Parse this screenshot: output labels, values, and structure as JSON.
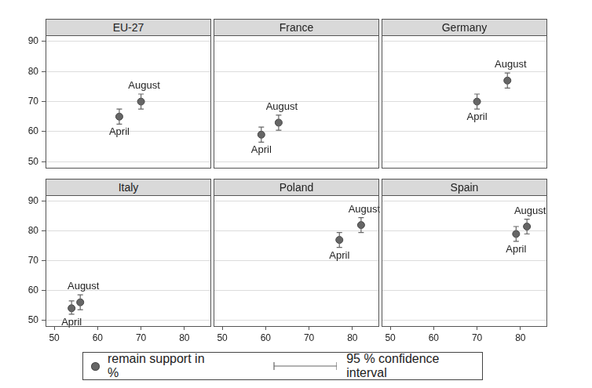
{
  "chart_data": [
    {
      "type": "scatter",
      "title": "EU-27",
      "xlim": [
        48,
        86
      ],
      "ylim": [
        48,
        92
      ],
      "xticks": [
        50,
        60,
        70,
        80
      ],
      "yticks": [
        50,
        60,
        70,
        80,
        90
      ],
      "grid": true,
      "tick_labels": "y",
      "legend": "bottom",
      "series": [
        {
          "name": "remain support in %",
          "color": "#666666",
          "marker": "circle",
          "x": [
            65,
            70
          ],
          "values": [
            65,
            70
          ],
          "point_labels": [
            "April",
            "August"
          ],
          "ci_name": "95 % confidence interval",
          "ci_low": [
            62.5,
            67.5
          ],
          "ci_high": [
            67.5,
            72.5
          ]
        }
      ]
    },
    {
      "type": "scatter",
      "title": "France",
      "xlim": [
        48,
        86
      ],
      "ylim": [
        48,
        92
      ],
      "xticks": [
        50,
        60,
        70,
        80
      ],
      "yticks": [
        50,
        60,
        70,
        80,
        90
      ],
      "grid": true,
      "tick_labels": false,
      "legend": "bottom",
      "series": [
        {
          "name": "remain support in %",
          "color": "#666666",
          "marker": "circle",
          "x": [
            59,
            63
          ],
          "values": [
            59,
            63
          ],
          "point_labels": [
            "April",
            "August"
          ],
          "ci_name": "95 % confidence interval",
          "ci_low": [
            56.5,
            60.5
          ],
          "ci_high": [
            61.5,
            65.5
          ]
        }
      ]
    },
    {
      "type": "scatter",
      "title": "Germany",
      "xlim": [
        48,
        86
      ],
      "ylim": [
        48,
        92
      ],
      "xticks": [
        50,
        60,
        70,
        80
      ],
      "yticks": [
        50,
        60,
        70,
        80,
        90
      ],
      "grid": true,
      "tick_labels": false,
      "legend": "bottom",
      "series": [
        {
          "name": "remain support in %",
          "color": "#666666",
          "marker": "circle",
          "x": [
            70,
            77
          ],
          "values": [
            70,
            77
          ],
          "point_labels": [
            "April",
            "August"
          ],
          "ci_name": "95 % confidence interval",
          "ci_low": [
            67.5,
            74.5
          ],
          "ci_high": [
            72.5,
            79.5
          ]
        }
      ]
    },
    {
      "type": "scatter",
      "title": "Italy",
      "xlim": [
        48,
        86
      ],
      "ylim": [
        48,
        92
      ],
      "xticks": [
        50,
        60,
        70,
        80
      ],
      "yticks": [
        50,
        60,
        70,
        80,
        90
      ],
      "grid": true,
      "tick_labels": true,
      "legend": "bottom",
      "series": [
        {
          "name": "remain support in %",
          "color": "#666666",
          "marker": "circle",
          "x": [
            54,
            56
          ],
          "values": [
            54,
            56
          ],
          "point_labels": [
            "April",
            "August"
          ],
          "ci_name": "95 % confidence interval",
          "ci_low": [
            52,
            53.5
          ],
          "ci_high": [
            56.5,
            58.5
          ]
        }
      ]
    },
    {
      "type": "scatter",
      "title": "Poland",
      "xlim": [
        48,
        86
      ],
      "ylim": [
        48,
        92
      ],
      "xticks": [
        50,
        60,
        70,
        80
      ],
      "yticks": [
        50,
        60,
        70,
        80,
        90
      ],
      "grid": true,
      "tick_labels": "x",
      "legend": "bottom",
      "series": [
        {
          "name": "remain support in %",
          "color": "#666666",
          "marker": "circle",
          "x": [
            77,
            82
          ],
          "values": [
            77,
            82
          ],
          "point_labels": [
            "April",
            "August"
          ],
          "ci_name": "95 % confidence interval",
          "ci_low": [
            74.5,
            79.5
          ],
          "ci_high": [
            79.5,
            84.5
          ]
        }
      ]
    },
    {
      "type": "scatter",
      "title": "Spain",
      "xlim": [
        48,
        86
      ],
      "ylim": [
        48,
        92
      ],
      "xticks": [
        50,
        60,
        70,
        80
      ],
      "yticks": [
        50,
        60,
        70,
        80,
        90
      ],
      "grid": true,
      "tick_labels": "x",
      "legend": "bottom",
      "series": [
        {
          "name": "remain support in %",
          "color": "#666666",
          "marker": "circle",
          "x": [
            79,
            81.5
          ],
          "values": [
            79,
            81.5
          ],
          "point_labels": [
            "April",
            "August"
          ],
          "ci_name": "95 % confidence interval",
          "ci_low": [
            76.5,
            79
          ],
          "ci_high": [
            81.5,
            84
          ]
        }
      ]
    }
  ]
}
